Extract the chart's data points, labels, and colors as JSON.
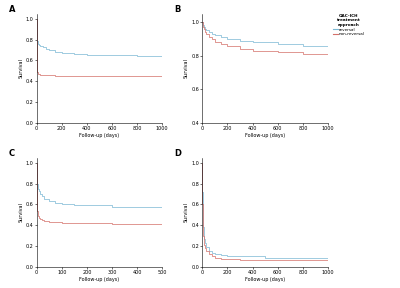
{
  "title": "OAC-ICH\ntreatment\napproach",
  "legend_labels": [
    "reversal",
    "non-reversal"
  ],
  "colors": {
    "reversal": "#7bb8d4",
    "non_reversal": "#d4706a"
  },
  "xlabel": "Follow-up (days)",
  "ylabel": "Survival",
  "panels": [
    "A",
    "B",
    "C",
    "D"
  ],
  "panel_A": {
    "xlim": [
      0,
      1000
    ],
    "ylim": [
      0.0,
      1.05
    ],
    "yticks": [
      0.0,
      0.2,
      0.4,
      0.6,
      0.8,
      1.0
    ],
    "xticks": [
      0,
      200,
      400,
      600,
      800,
      1000
    ],
    "reversal_x": [
      0,
      1,
      2,
      3,
      5,
      7,
      10,
      15,
      20,
      30,
      50,
      75,
      100,
      150,
      200,
      300,
      400,
      600,
      800,
      1000
    ],
    "reversal_y": [
      1.0,
      0.88,
      0.84,
      0.82,
      0.8,
      0.79,
      0.78,
      0.76,
      0.75,
      0.74,
      0.73,
      0.71,
      0.7,
      0.68,
      0.67,
      0.66,
      0.65,
      0.65,
      0.64,
      0.64
    ],
    "non_reversal_x": [
      0,
      1,
      2,
      3,
      5,
      7,
      10,
      15,
      20,
      30,
      50,
      75,
      100,
      150,
      200,
      300,
      400,
      600,
      800,
      1000
    ],
    "non_reversal_y": [
      1.0,
      0.62,
      0.55,
      0.52,
      0.5,
      0.49,
      0.48,
      0.47,
      0.47,
      0.46,
      0.46,
      0.46,
      0.46,
      0.45,
      0.45,
      0.45,
      0.45,
      0.45,
      0.45,
      0.45
    ]
  },
  "panel_B": {
    "xlim": [
      0,
      1000
    ],
    "ylim": [
      0.4,
      1.05
    ],
    "yticks": [
      0.4,
      0.6,
      0.8,
      1.0
    ],
    "xticks": [
      0,
      200,
      400,
      600,
      800,
      1000
    ],
    "reversal_x": [
      0,
      2,
      5,
      10,
      20,
      30,
      50,
      75,
      100,
      150,
      200,
      300,
      400,
      600,
      800,
      1000
    ],
    "reversal_y": [
      1.0,
      0.99,
      0.98,
      0.97,
      0.96,
      0.95,
      0.94,
      0.93,
      0.92,
      0.91,
      0.9,
      0.89,
      0.88,
      0.87,
      0.86,
      0.86
    ],
    "non_reversal_x": [
      0,
      2,
      5,
      10,
      20,
      30,
      50,
      75,
      100,
      150,
      200,
      300,
      400,
      600,
      800,
      1000
    ],
    "non_reversal_y": [
      1.0,
      0.98,
      0.97,
      0.96,
      0.94,
      0.93,
      0.91,
      0.9,
      0.88,
      0.87,
      0.86,
      0.84,
      0.83,
      0.82,
      0.81,
      0.81
    ]
  },
  "panel_C": {
    "xlim": [
      0,
      500
    ],
    "ylim": [
      0.0,
      1.05
    ],
    "yticks": [
      0.0,
      0.2,
      0.4,
      0.6,
      0.8,
      1.0
    ],
    "xticks": [
      0,
      100,
      200,
      300,
      400,
      500
    ],
    "reversal_x": [
      0,
      1,
      2,
      3,
      5,
      7,
      10,
      15,
      20,
      30,
      50,
      75,
      100,
      150,
      200,
      300,
      500
    ],
    "reversal_y": [
      1.0,
      0.88,
      0.83,
      0.8,
      0.77,
      0.75,
      0.73,
      0.7,
      0.68,
      0.65,
      0.63,
      0.61,
      0.6,
      0.59,
      0.59,
      0.58,
      0.58
    ],
    "non_reversal_x": [
      0,
      1,
      2,
      3,
      5,
      7,
      10,
      15,
      20,
      30,
      50,
      75,
      100,
      150,
      200,
      300,
      500
    ],
    "non_reversal_y": [
      1.0,
      0.66,
      0.58,
      0.54,
      0.51,
      0.49,
      0.47,
      0.46,
      0.45,
      0.44,
      0.43,
      0.43,
      0.42,
      0.42,
      0.42,
      0.41,
      0.41
    ]
  },
  "panel_D": {
    "xlim": [
      0,
      1000
    ],
    "ylim": [
      0.0,
      1.05
    ],
    "yticks": [
      0.0,
      0.2,
      0.4,
      0.6,
      0.8,
      1.0
    ],
    "xticks": [
      0,
      200,
      400,
      600,
      800,
      1000
    ],
    "reversal_x": [
      0,
      1,
      2,
      3,
      5,
      7,
      10,
      15,
      20,
      30,
      50,
      75,
      100,
      150,
      200,
      300,
      500,
      800,
      1000
    ],
    "reversal_y": [
      1.0,
      0.72,
      0.58,
      0.51,
      0.44,
      0.38,
      0.32,
      0.27,
      0.23,
      0.19,
      0.15,
      0.13,
      0.12,
      0.11,
      0.1,
      0.1,
      0.09,
      0.09,
      0.09
    ],
    "non_reversal_x": [
      0,
      1,
      2,
      3,
      5,
      7,
      10,
      15,
      20,
      30,
      50,
      75,
      100,
      150,
      200,
      300,
      500,
      800,
      1000
    ],
    "non_reversal_y": [
      1.0,
      0.6,
      0.48,
      0.43,
      0.36,
      0.3,
      0.25,
      0.21,
      0.18,
      0.15,
      0.12,
      0.1,
      0.09,
      0.08,
      0.08,
      0.07,
      0.07,
      0.07,
      0.07
    ]
  }
}
